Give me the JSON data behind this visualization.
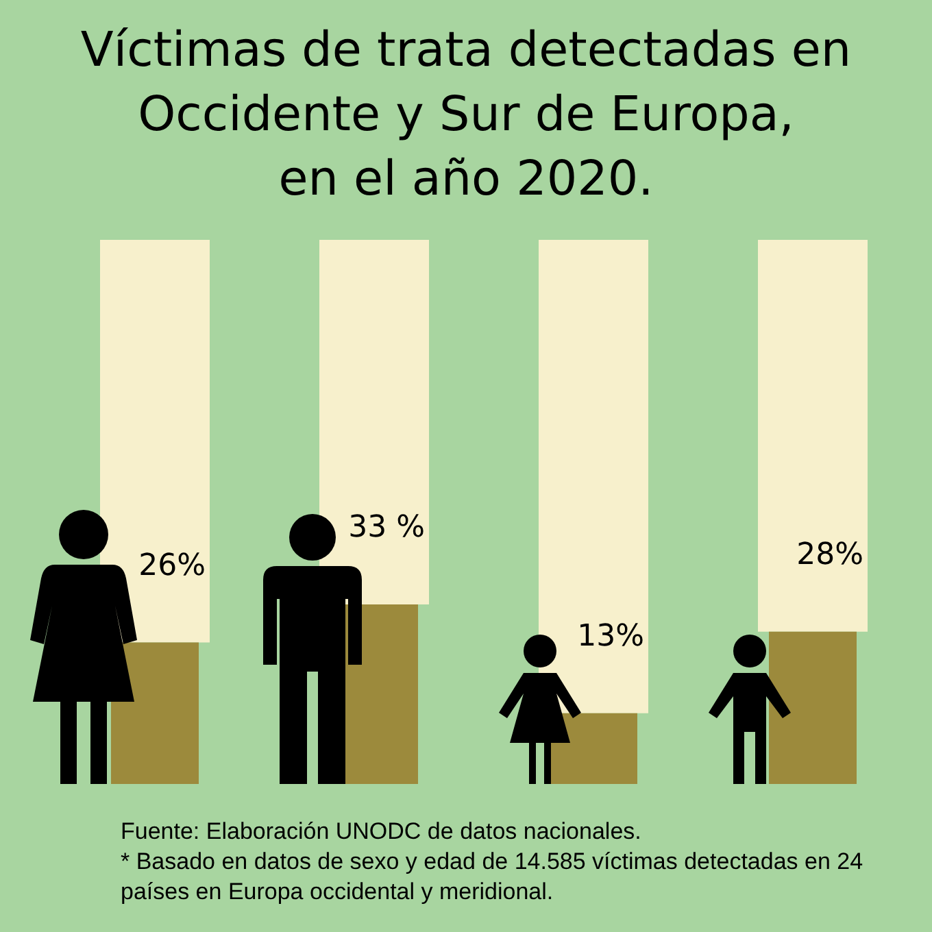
{
  "chart_data": {
    "type": "bar",
    "title": "Víctimas de trata detectadas en\nOccidente y Sur de Europa,\nen el año 2020.",
    "categories": [
      null,
      null,
      null,
      null
    ],
    "stacked": true,
    "series": [
      {
        "color": "#9c8a3c",
        "values": [
          26,
          33,
          13,
          28
        ],
        "value_labels": [
          "26%",
          "33 %",
          "13%",
          "28%"
        ]
      },
      {
        "color": "#f7f0cc",
        "values": [
          74,
          67,
          87,
          72
        ]
      }
    ],
    "ylim": [
      0,
      100
    ],
    "tick_labels": false,
    "legend": false,
    "annotations": [
      "Fuente: Elaboración UNODC de datos nacionales.",
      "* Basado en datos de sexo y edad de 14.585 víctimas detectadas en 24 países en Europa occidental y meridional."
    ]
  }
}
